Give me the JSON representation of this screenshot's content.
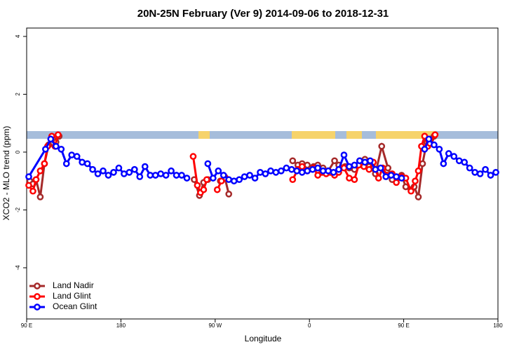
{
  "chart_data": {
    "type": "line",
    "title": "20N-25N February (Ver 9)   2014-09-06 to 2018-12-31",
    "x_label": "Longitude",
    "y_label": "XCO2 - MLO trend (ppm)",
    "xlim": [
      90,
      540
    ],
    "xticks": [
      {
        "value": 90,
        "label": "90 E"
      },
      {
        "value": 180,
        "label": "180"
      },
      {
        "value": 270,
        "label": "90 W"
      },
      {
        "value": 360,
        "label": "0"
      },
      {
        "value": 450,
        "label": "90 E"
      },
      {
        "value": 540,
        "label": "180"
      }
    ],
    "ylim": [
      -5.77,
      4.29
    ],
    "yticks": [
      -4,
      -2,
      0,
      2,
      4
    ],
    "legend": "bottom-left",
    "series": [
      {
        "name": "Land Nadir",
        "color": "#a52a2a",
        "x": [
          93,
          96,
          99,
          103,
          107,
          111,
          115,
          118,
          121,
          124,
          250,
          255,
          259,
          263,
          268,
          275,
          279,
          283,
          300,
          344,
          349,
          353,
          358,
          364,
          368,
          373,
          378,
          384,
          388,
          394,
          398,
          403,
          408,
          413,
          417,
          423,
          429,
          435,
          439,
          443,
          448,
          452,
          457,
          460,
          464,
          468,
          472,
          476,
          479
        ],
        "values": [
          -1.0,
          -1.1,
          -0.95,
          -1.55,
          -0.4,
          0.25,
          0.45,
          0.35,
          0.55,
          null,
          -0.95,
          -1.5,
          -1.05,
          -0.95,
          null,
          -1.0,
          -0.85,
          -1.45,
          null,
          -0.3,
          -0.45,
          -0.4,
          -0.45,
          -0.5,
          -0.45,
          -0.55,
          -0.65,
          -0.3,
          -0.45,
          -0.5,
          -0.55,
          -0.6,
          -0.3,
          -0.25,
          -0.5,
          -0.75,
          0.2,
          -0.55,
          -0.95,
          -0.85,
          -0.8,
          -1.2,
          -1.3,
          -1.2,
          -1.55,
          -0.4,
          0.35,
          0.45,
          0.55
        ]
      },
      {
        "name": "Land Glint",
        "color": "#ff0000",
        "x": [
          92,
          96,
          99,
          103,
          107,
          110,
          114,
          117,
          120,
          124,
          249,
          253,
          256,
          259,
          262,
          266,
          272,
          276,
          280,
          300,
          344,
          349,
          353,
          358,
          364,
          368,
          372,
          376,
          380,
          384,
          388,
          393,
          398,
          403,
          407,
          412,
          417,
          421,
          426,
          430,
          434,
          439,
          443,
          448,
          452,
          457,
          461,
          464,
          467,
          470,
          473,
          475,
          480
        ],
        "values": [
          -1.15,
          -1.35,
          -0.95,
          -0.65,
          -0.4,
          0.2,
          0.55,
          0.2,
          0.6,
          null,
          -0.15,
          -1.15,
          -1.4,
          -1.3,
          -0.95,
          null,
          -1.3,
          -1.0,
          -0.9,
          null,
          -0.95,
          -0.6,
          -0.5,
          -0.65,
          -0.55,
          -0.8,
          -0.7,
          -0.75,
          -0.7,
          -0.8,
          -0.7,
          -0.55,
          -0.9,
          -0.95,
          -0.45,
          -0.5,
          -0.6,
          -0.35,
          -0.9,
          -0.55,
          -0.8,
          -0.75,
          -1.05,
          -0.85,
          -0.9,
          -1.35,
          -1.0,
          -0.65,
          0.2,
          0.55,
          0.2,
          0.3,
          0.6
        ]
      },
      {
        "name": "Ocean Glint",
        "color": "#0000ff",
        "x": [
          92,
          108,
          113,
          118,
          123,
          128,
          133,
          138,
          143,
          148,
          153,
          158,
          163,
          168,
          173,
          178,
          183,
          188,
          193,
          198,
          203,
          208,
          213,
          218,
          223,
          228,
          233,
          238,
          243,
          248,
          263,
          268,
          273,
          278,
          283,
          288,
          293,
          298,
          303,
          308,
          313,
          318,
          323,
          328,
          333,
          338,
          343,
          348,
          353,
          358,
          363,
          368,
          373,
          378,
          383,
          388,
          393,
          398,
          403,
          408,
          413,
          418,
          423,
          428,
          433,
          438,
          443,
          448,
          453,
          470,
          474,
          479,
          484,
          488,
          493,
          498,
          503,
          508,
          513,
          518,
          523,
          528,
          533,
          538
        ],
        "values": [
          -0.85,
          0.1,
          0.45,
          0.2,
          0.1,
          -0.4,
          -0.1,
          -0.15,
          -0.35,
          -0.4,
          -0.6,
          -0.75,
          -0.65,
          -0.8,
          -0.7,
          -0.55,
          -0.75,
          -0.7,
          -0.6,
          -0.85,
          -0.5,
          -0.8,
          -0.8,
          -0.75,
          -0.8,
          -0.65,
          -0.8,
          -0.8,
          -0.9,
          null,
          -0.4,
          -0.9,
          -0.65,
          -0.8,
          -0.95,
          -1.0,
          -0.95,
          -0.85,
          -0.8,
          -0.9,
          -0.7,
          -0.75,
          -0.65,
          -0.7,
          -0.65,
          -0.55,
          -0.6,
          -0.65,
          -0.7,
          -0.65,
          -0.6,
          -0.55,
          -0.65,
          -0.65,
          -0.7,
          -0.6,
          -0.1,
          -0.5,
          -0.45,
          -0.3,
          -0.35,
          -0.3,
          -0.6,
          -0.55,
          -0.85,
          -0.8,
          -0.85,
          -0.9,
          null,
          0.1,
          0.45,
          0.25,
          0.1,
          -0.4,
          -0.05,
          -0.15,
          -0.3,
          -0.35,
          -0.55,
          -0.7,
          -0.75,
          -0.6,
          -0.8,
          -0.7
        ]
      }
    ]
  }
}
